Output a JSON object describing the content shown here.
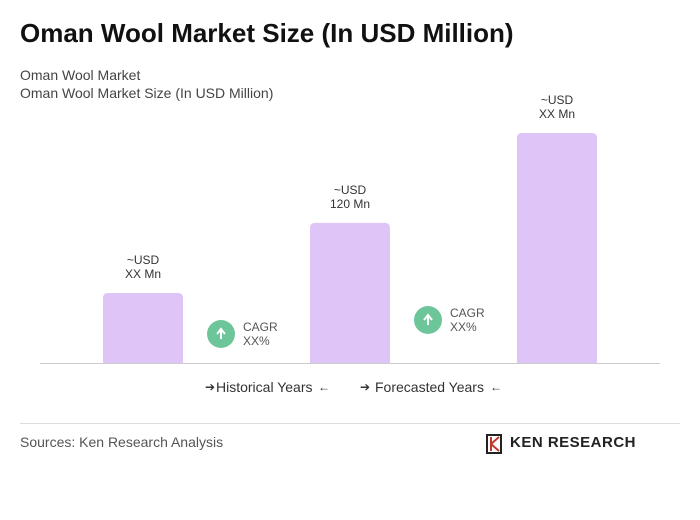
{
  "chart_data": {
    "type": "bar",
    "title": "Oman Wool Market Size (In USD Million)",
    "subtitle": [
      "Oman Wool Market",
      "Oman Wool Market Size (In USD Million)"
    ],
    "categories": [
      null,
      null,
      null
    ],
    "values": [
      60,
      120,
      197
    ],
    "value_labels": [
      "~USD\nXX Mn",
      "~USD\n120 Mn",
      "~USD\nXX Mn"
    ],
    "color": "#dfc4f8",
    "annotations": [
      "CAGR\nXX%",
      "CAGR\nXX%"
    ],
    "annotation_color": "#6cc69a",
    "legend": [
      "Historical Years",
      "Forecasted Years"
    ],
    "source": "Sources: Ken Research Analysis",
    "logo": "KEN RESEARCH"
  }
}
